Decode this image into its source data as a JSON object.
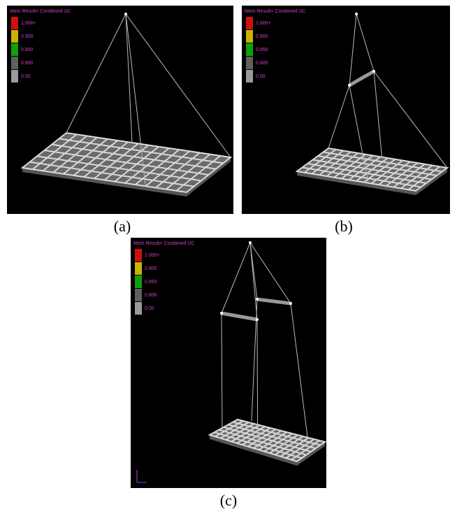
{
  "panels": [
    {
      "legend_title": "Mem Result= Combined UC",
      "legend": [
        {
          "label": "1.000+",
          "color": "#d01010"
        },
        {
          "label": "0.900",
          "color": "#c8b400"
        },
        {
          "label": "0.850",
          "color": "#10a010"
        },
        {
          "label": "0.800",
          "color": "#606060"
        },
        {
          "label": "0.00",
          "color": "#9a9a9a"
        }
      ],
      "caption": "(a)"
    },
    {
      "legend_title": "Mem Result= Combined UC",
      "legend": [
        {
          "label": "1.000+",
          "color": "#d01010"
        },
        {
          "label": "0.900",
          "color": "#c8b400"
        },
        {
          "label": "0.850",
          "color": "#10a010"
        },
        {
          "label": "0.800",
          "color": "#606060"
        },
        {
          "label": "0.00",
          "color": "#9a9a9a"
        }
      ],
      "caption": "(b)"
    },
    {
      "legend_title": "Mem Result= Combined UC",
      "legend": [
        {
          "label": "1.000+",
          "color": "#d01010"
        },
        {
          "label": "0.900",
          "color": "#c8b400"
        },
        {
          "label": "0.850",
          "color": "#10a010"
        },
        {
          "label": "0.800",
          "color": "#606060"
        },
        {
          "label": "0.00",
          "color": "#9a9a9a"
        }
      ],
      "caption": "(c)"
    }
  ]
}
